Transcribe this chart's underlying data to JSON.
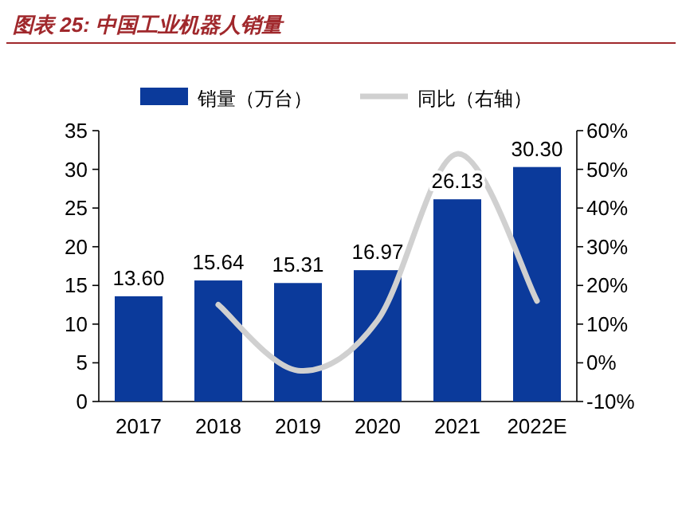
{
  "chart_data": {
    "type": "bar",
    "title": "图表 25:  中国工业机器人销量",
    "categories": [
      "2017",
      "2018",
      "2019",
      "2020",
      "2021",
      "2022E"
    ],
    "series": [
      {
        "name": "销量（万台）",
        "color": "#0b3a9b",
        "values": [
          13.6,
          15.64,
          15.31,
          16.97,
          26.13,
          30.3
        ],
        "value_labels": [
          "13.60",
          "15.64",
          "15.31",
          "16.97",
          "26.13",
          "30.30"
        ]
      },
      {
        "name": "同比（右轴）",
        "type": "line",
        "axis": "y2",
        "color": "#d0d0d0",
        "values": [
          null,
          15,
          -2,
          11,
          54,
          16
        ]
      }
    ],
    "ylim": [
      0,
      35
    ],
    "yticks": [
      0,
      5,
      10,
      15,
      20,
      25,
      30,
      35
    ],
    "y2lim": [
      -10,
      60
    ],
    "y2ticks": [
      {
        "value": -10,
        "label": "-10%"
      },
      {
        "value": 0,
        "label": "0%"
      },
      {
        "value": 10,
        "label": "10%"
      },
      {
        "value": 20,
        "label": "20%"
      },
      {
        "value": 30,
        "label": "30%"
      },
      {
        "value": 40,
        "label": "40%"
      },
      {
        "value": 50,
        "label": "50%"
      },
      {
        "value": 60,
        "label": "60%"
      }
    ],
    "legend": "top",
    "grid": false
  }
}
